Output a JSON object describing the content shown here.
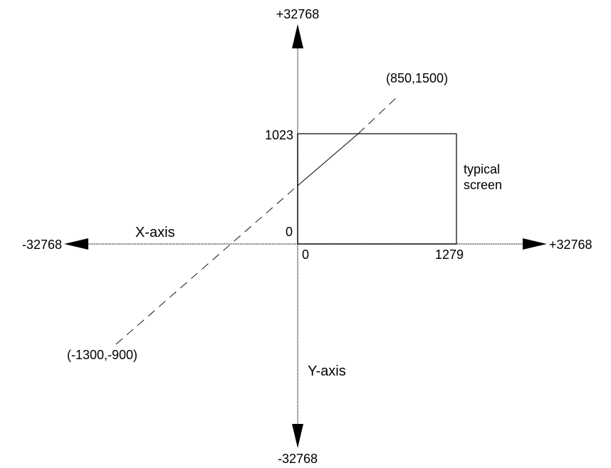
{
  "axes": {
    "x_name": "X-axis",
    "y_name": "Y-axis",
    "x_min_label": "-32768",
    "x_max_label": "+32768",
    "y_max_label": "+32768",
    "y_min_label": "-32768"
  },
  "screen": {
    "label_line1": "typical",
    "label_line2": "screen",
    "x_origin_label": "0",
    "x_extent_label": "1279",
    "y_origin_label": "0",
    "y_extent_label": "1023"
  },
  "line": {
    "start_label": "(-1300,-900)",
    "end_label": "(850,1500)"
  }
}
